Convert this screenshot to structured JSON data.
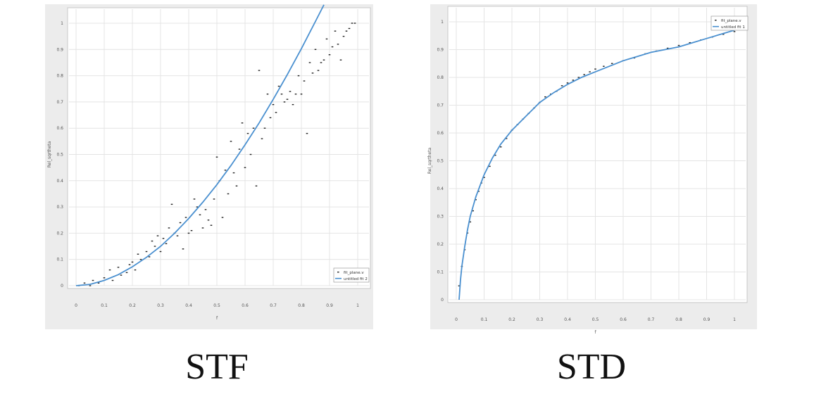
{
  "captions": {
    "left": "STF",
    "right": "STD"
  },
  "colors": {
    "fit": "#4a90d0",
    "points": "#222222",
    "panel_bg": "#ececec",
    "plot_bg": "#ffffff",
    "grid": "#e4e4e4"
  },
  "chart_data": [
    {
      "type": "scatter",
      "title": "",
      "xlabel": "f",
      "ylabel": "Rel_sqrtheta",
      "xlim": [
        0,
        1
      ],
      "ylim": [
        0,
        1
      ],
      "x_ticks": [
        "0",
        "0.1",
        "0.2",
        "0.3",
        "0.4",
        "0.5",
        "0.6",
        "0.7",
        "0.8",
        "0.9",
        "1"
      ],
      "y_ticks": [
        "0",
        "0.1",
        "0.2",
        "0.3",
        "0.4",
        "0.5",
        "0.6",
        "0.7",
        "0.8",
        "0.9",
        "1"
      ],
      "grid": true,
      "legend_position": "bottom-right",
      "series": [
        {
          "name": "fit_plane.v",
          "kind": "points",
          "points": [
            [
              0.01,
              0.0
            ],
            [
              0.03,
              0.01
            ],
            [
              0.05,
              0.0
            ],
            [
              0.06,
              0.02
            ],
            [
              0.08,
              0.01
            ],
            [
              0.1,
              0.03
            ],
            [
              0.12,
              0.06
            ],
            [
              0.13,
              0.02
            ],
            [
              0.15,
              0.07
            ],
            [
              0.16,
              0.04
            ],
            [
              0.18,
              0.05
            ],
            [
              0.19,
              0.08
            ],
            [
              0.2,
              0.09
            ],
            [
              0.21,
              0.06
            ],
            [
              0.22,
              0.12
            ],
            [
              0.23,
              0.1
            ],
            [
              0.25,
              0.13
            ],
            [
              0.26,
              0.11
            ],
            [
              0.27,
              0.17
            ],
            [
              0.28,
              0.15
            ],
            [
              0.29,
              0.19
            ],
            [
              0.3,
              0.13
            ],
            [
              0.31,
              0.18
            ],
            [
              0.32,
              0.16
            ],
            [
              0.33,
              0.22
            ],
            [
              0.34,
              0.31
            ],
            [
              0.35,
              0.2
            ],
            [
              0.36,
              0.19
            ],
            [
              0.37,
              0.24
            ],
            [
              0.38,
              0.14
            ],
            [
              0.39,
              0.26
            ],
            [
              0.4,
              0.2
            ],
            [
              0.41,
              0.21
            ],
            [
              0.42,
              0.33
            ],
            [
              0.43,
              0.3
            ],
            [
              0.44,
              0.27
            ],
            [
              0.45,
              0.22
            ],
            [
              0.46,
              0.29
            ],
            [
              0.47,
              0.25
            ],
            [
              0.48,
              0.23
            ],
            [
              0.49,
              0.33
            ],
            [
              0.5,
              0.49
            ],
            [
              0.51,
              0.4
            ],
            [
              0.52,
              0.26
            ],
            [
              0.53,
              0.44
            ],
            [
              0.54,
              0.35
            ],
            [
              0.55,
              0.55
            ],
            [
              0.56,
              0.43
            ],
            [
              0.57,
              0.38
            ],
            [
              0.58,
              0.52
            ],
            [
              0.59,
              0.62
            ],
            [
              0.6,
              0.45
            ],
            [
              0.61,
              0.58
            ],
            [
              0.62,
              0.5
            ],
            [
              0.63,
              0.6
            ],
            [
              0.64,
              0.38
            ],
            [
              0.65,
              0.82
            ],
            [
              0.66,
              0.56
            ],
            [
              0.67,
              0.6
            ],
            [
              0.68,
              0.73
            ],
            [
              0.69,
              0.64
            ],
            [
              0.7,
              0.69
            ],
            [
              0.71,
              0.66
            ],
            [
              0.72,
              0.76
            ],
            [
              0.73,
              0.73
            ],
            [
              0.74,
              0.7
            ],
            [
              0.75,
              0.71
            ],
            [
              0.76,
              0.74
            ],
            [
              0.77,
              0.69
            ],
            [
              0.78,
              0.73
            ],
            [
              0.79,
              0.8
            ],
            [
              0.8,
              0.73
            ],
            [
              0.81,
              0.78
            ],
            [
              0.82,
              0.58
            ],
            [
              0.83,
              0.85
            ],
            [
              0.84,
              0.81
            ],
            [
              0.85,
              0.9
            ],
            [
              0.86,
              0.82
            ],
            [
              0.87,
              0.85
            ],
            [
              0.88,
              0.86
            ],
            [
              0.89,
              0.94
            ],
            [
              0.9,
              0.88
            ],
            [
              0.91,
              0.91
            ],
            [
              0.92,
              0.97
            ],
            [
              0.93,
              0.92
            ],
            [
              0.94,
              0.86
            ],
            [
              0.95,
              0.95
            ],
            [
              0.96,
              0.97
            ],
            [
              0.97,
              0.98
            ],
            [
              0.98,
              1.0
            ],
            [
              0.99,
              1.0
            ]
          ]
        },
        {
          "name": "untitled fit 2",
          "kind": "line",
          "points": [
            [
              0.0,
              0.0
            ],
            [
              0.05,
              0.005
            ],
            [
              0.1,
              0.02
            ],
            [
              0.15,
              0.042
            ],
            [
              0.2,
              0.072
            ],
            [
              0.25,
              0.108
            ],
            [
              0.3,
              0.15
            ],
            [
              0.35,
              0.2
            ],
            [
              0.4,
              0.256
            ],
            [
              0.45,
              0.318
            ],
            [
              0.5,
              0.385
            ],
            [
              0.55,
              0.458
            ],
            [
              0.6,
              0.537
            ],
            [
              0.65,
              0.62
            ],
            [
              0.7,
              0.71
            ],
            [
              0.75,
              0.804
            ],
            [
              0.8,
              0.903
            ],
            [
              0.85,
              1.007
            ],
            [
              0.88,
              1.07
            ]
          ]
        }
      ]
    },
    {
      "type": "scatter",
      "title": "",
      "xlabel": "f",
      "ylabel": "Rel_sqrtheta",
      "xlim": [
        0,
        1
      ],
      "ylim": [
        0,
        1
      ],
      "x_ticks": [
        "0",
        "0.1",
        "0.2",
        "0.3",
        "0.4",
        "0.5",
        "0.6",
        "0.7",
        "0.8",
        "0.9",
        "1"
      ],
      "y_ticks": [
        "0",
        "0.1",
        "0.2",
        "0.3",
        "0.4",
        "0.5",
        "0.6",
        "0.7",
        "0.8",
        "0.9",
        "1"
      ],
      "grid": true,
      "legend_position": "top-right",
      "series": [
        {
          "name": "fit_plane.v",
          "kind": "points",
          "points": [
            [
              0.01,
              0.05
            ],
            [
              0.02,
              0.12
            ],
            [
              0.03,
              0.18
            ],
            [
              0.04,
              0.24
            ],
            [
              0.05,
              0.28
            ],
            [
              0.06,
              0.32
            ],
            [
              0.07,
              0.36
            ],
            [
              0.08,
              0.39
            ],
            [
              0.09,
              0.42
            ],
            [
              0.1,
              0.44
            ],
            [
              0.12,
              0.48
            ],
            [
              0.14,
              0.52
            ],
            [
              0.16,
              0.55
            ],
            [
              0.18,
              0.58
            ],
            [
              0.2,
              0.61
            ],
            [
              0.22,
              0.63
            ],
            [
              0.24,
              0.65
            ],
            [
              0.26,
              0.67
            ],
            [
              0.28,
              0.69
            ],
            [
              0.3,
              0.71
            ],
            [
              0.32,
              0.73
            ],
            [
              0.34,
              0.74
            ],
            [
              0.36,
              0.75
            ],
            [
              0.38,
              0.77
            ],
            [
              0.4,
              0.78
            ],
            [
              0.42,
              0.79
            ],
            [
              0.44,
              0.8
            ],
            [
              0.46,
              0.81
            ],
            [
              0.48,
              0.82
            ],
            [
              0.5,
              0.83
            ],
            [
              0.53,
              0.84
            ],
            [
              0.56,
              0.85
            ],
            [
              0.6,
              0.86
            ],
            [
              0.64,
              0.87
            ],
            [
              0.68,
              0.885
            ],
            [
              0.72,
              0.895
            ],
            [
              0.76,
              0.905
            ],
            [
              0.8,
              0.915
            ],
            [
              0.84,
              0.925
            ],
            [
              0.88,
              0.935
            ],
            [
              0.92,
              0.945
            ],
            [
              0.96,
              0.955
            ],
            [
              1.0,
              0.965
            ]
          ]
        },
        {
          "name": "untitled fit 1",
          "kind": "line",
          "points": [
            [
              0.01,
              0.0
            ],
            [
              0.015,
              0.07
            ],
            [
              0.02,
              0.12
            ],
            [
              0.03,
              0.19
            ],
            [
              0.04,
              0.25
            ],
            [
              0.05,
              0.3
            ],
            [
              0.07,
              0.37
            ],
            [
              0.1,
              0.45
            ],
            [
              0.13,
              0.51
            ],
            [
              0.16,
              0.56
            ],
            [
              0.2,
              0.61
            ],
            [
              0.25,
              0.66
            ],
            [
              0.3,
              0.71
            ],
            [
              0.35,
              0.745
            ],
            [
              0.4,
              0.775
            ],
            [
              0.45,
              0.8
            ],
            [
              0.5,
              0.82
            ],
            [
              0.55,
              0.84
            ],
            [
              0.6,
              0.86
            ],
            [
              0.65,
              0.875
            ],
            [
              0.7,
              0.89
            ],
            [
              0.75,
              0.9
            ],
            [
              0.8,
              0.91
            ],
            [
              0.85,
              0.925
            ],
            [
              0.9,
              0.94
            ],
            [
              0.95,
              0.955
            ],
            [
              1.0,
              0.97
            ]
          ]
        }
      ]
    }
  ]
}
